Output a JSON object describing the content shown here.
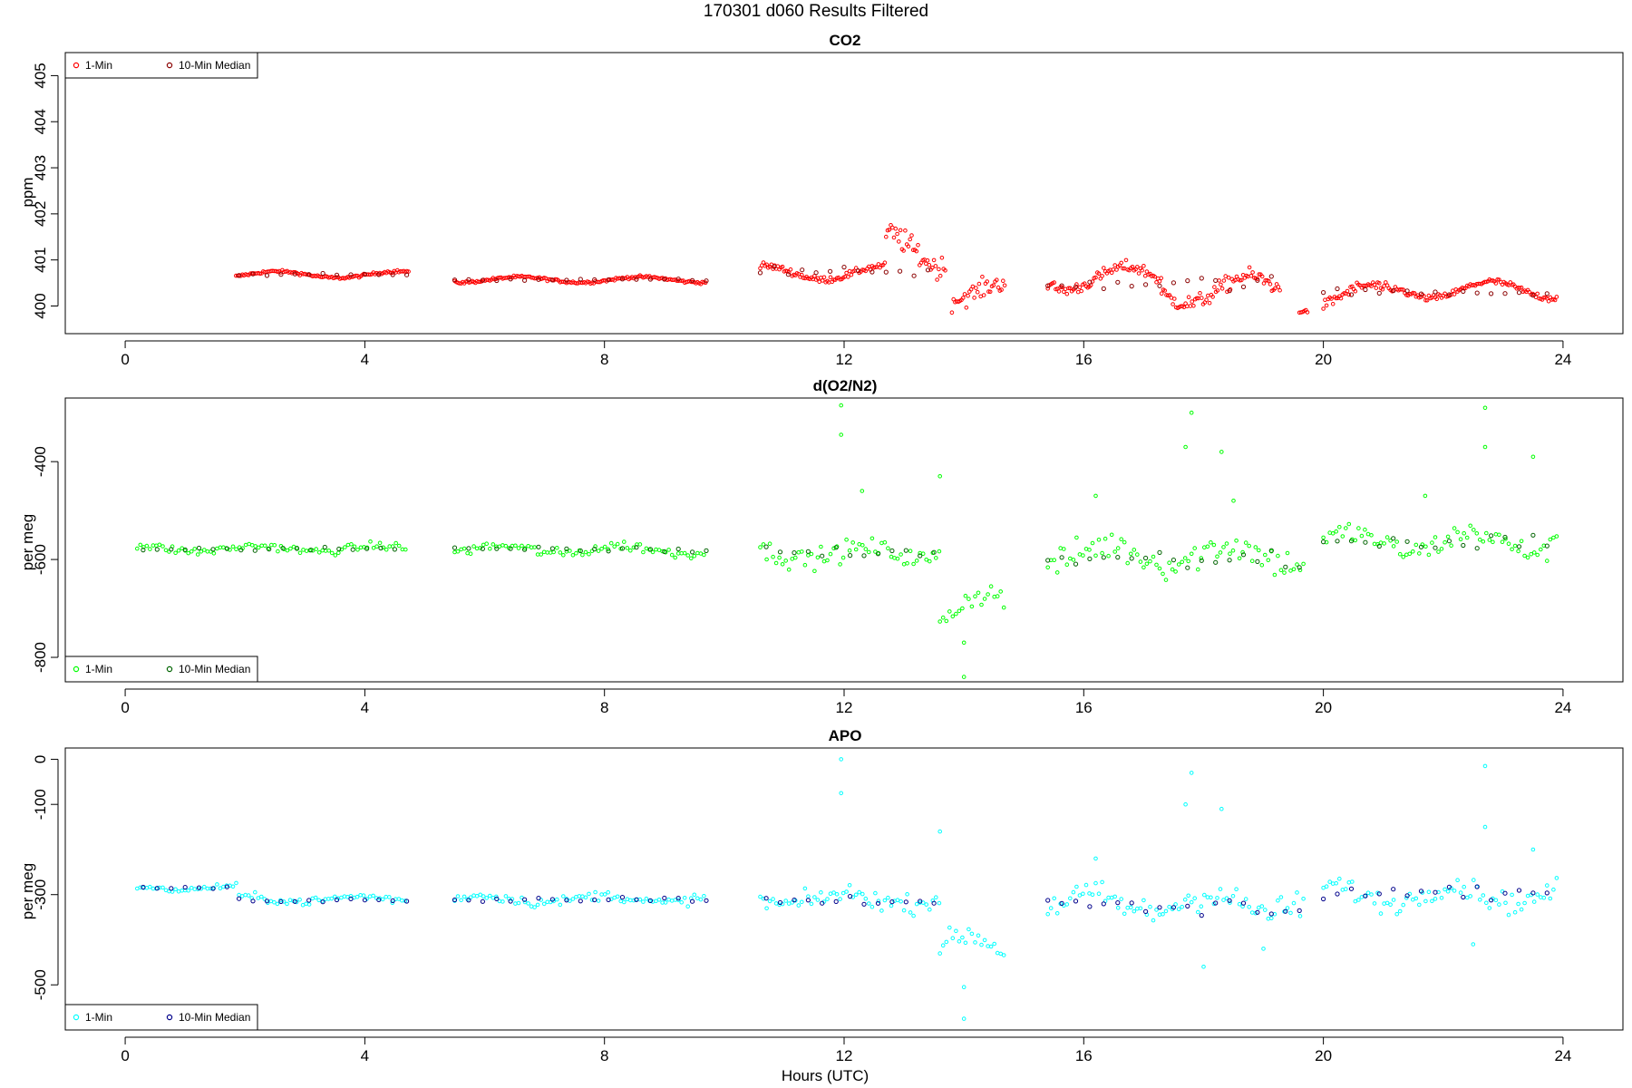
{
  "figure": {
    "main_title": "170301   d060   Results Filtered",
    "xlabel": "Hours (UTC)"
  },
  "chart_data": [
    {
      "type": "scatter",
      "title": "CO2",
      "ylabel": "ppm",
      "xlim": [
        -1.0,
        25.0
      ],
      "ylim": [
        399.4,
        405.5
      ],
      "xticks": [
        0,
        4,
        8,
        12,
        16,
        20,
        24
      ],
      "yticks": [
        400,
        401,
        402,
        403,
        404,
        405
      ],
      "legend_position": "top-left",
      "series": [
        {
          "name": "1-Min",
          "color": "#ff0000",
          "points": []
        },
        {
          "name": "10-Min Median",
          "color": "#8b0000",
          "points": []
        }
      ],
      "segments_1min": [
        {
          "x0": 1.85,
          "x1": 4.75,
          "base": 400.68,
          "noise": 0.05,
          "wave": 0.07
        },
        {
          "x0": 5.5,
          "x1": 9.7,
          "base": 400.57,
          "noise": 0.05,
          "wave": 0.06
        },
        {
          "x0": 10.6,
          "x1": 12.7,
          "base": 400.72,
          "noise": 0.12,
          "wave": 0.15
        },
        {
          "x0": 12.7,
          "x1": 13.7,
          "base": 401.2,
          "noise": 0.45,
          "wave": 0.4
        },
        {
          "x0": 13.8,
          "x1": 14.7,
          "base": 400.3,
          "noise": 0.35,
          "wave": 0.2
        },
        {
          "x0": 15.4,
          "x1": 17.3,
          "base": 400.6,
          "noise": 0.22,
          "wave": 0.25
        },
        {
          "x0": 17.3,
          "x1": 19.3,
          "base": 400.35,
          "noise": 0.3,
          "wave": 0.3
        },
        {
          "x0": 19.6,
          "x1": 19.75,
          "base": 399.9,
          "noise": 0.05,
          "wave": 0.02
        },
        {
          "x0": 20.0,
          "x1": 21.2,
          "base": 400.2,
          "noise": 0.2,
          "wave": 0.25
        },
        {
          "x0": 21.2,
          "x1": 23.9,
          "base": 400.35,
          "noise": 0.12,
          "wave": 0.18
        }
      ],
      "segments_median": [
        {
          "x0": 1.9,
          "x1": 4.7,
          "base": 400.68,
          "noise": 0.04
        },
        {
          "x0": 5.5,
          "x1": 9.7,
          "base": 400.57,
          "noise": 0.04
        },
        {
          "x0": 10.6,
          "x1": 13.5,
          "base": 400.75,
          "noise": 0.2
        },
        {
          "x0": 15.4,
          "x1": 19.3,
          "base": 400.5,
          "noise": 0.25
        },
        {
          "x0": 20.0,
          "x1": 23.9,
          "base": 400.3,
          "noise": 0.15
        }
      ]
    },
    {
      "type": "scatter",
      "title": "d(O2/N2)",
      "ylabel": "per meg",
      "xlim": [
        -1.0,
        25.0
      ],
      "ylim": [
        -850,
        -270
      ],
      "xticks": [
        0,
        4,
        8,
        12,
        16,
        20,
        24
      ],
      "yticks": [
        -800,
        -600,
        -400
      ],
      "legend_position": "bottom-left",
      "series": [
        {
          "name": "1-Min",
          "color": "#00ff00",
          "points": []
        },
        {
          "name": "10-Min Median",
          "color": "#006400",
          "points": []
        }
      ],
      "segments_1min": [
        {
          "x0": 0.2,
          "x1": 4.7,
          "base": -578,
          "noise": 14,
          "wave": 6
        },
        {
          "x0": 5.5,
          "x1": 9.7,
          "base": -580,
          "noise": 18,
          "wave": 8
        },
        {
          "x0": 10.6,
          "x1": 13.6,
          "base": -588,
          "noise": 35,
          "wave": 12
        },
        {
          "x0": 13.6,
          "x1": 14.7,
          "base": -700,
          "noise": 40,
          "wave": 30
        },
        {
          "x0": 15.4,
          "x1": 19.7,
          "base": -590,
          "noise": 55,
          "wave": 20
        },
        {
          "x0": 20.0,
          "x1": 23.9,
          "base": -565,
          "noise": 40,
          "wave": 20
        }
      ],
      "segments_median": [
        {
          "x0": 0.3,
          "x1": 4.7,
          "base": -578,
          "noise": 8
        },
        {
          "x0": 5.5,
          "x1": 9.7,
          "base": -580,
          "noise": 10
        },
        {
          "x0": 10.7,
          "x1": 13.6,
          "base": -585,
          "noise": 20
        },
        {
          "x0": 15.4,
          "x1": 19.7,
          "base": -600,
          "noise": 40
        },
        {
          "x0": 20.0,
          "x1": 23.9,
          "base": -565,
          "noise": 30
        }
      ],
      "outliers_1min": [
        [
          11.95,
          -285
        ],
        [
          11.95,
          -345
        ],
        [
          17.8,
          -300
        ],
        [
          22.7,
          -290
        ],
        [
          22.7,
          -370
        ],
        [
          17.7,
          -370
        ],
        [
          13.6,
          -430
        ],
        [
          14.0,
          -840
        ],
        [
          14.0,
          -770
        ],
        [
          18.3,
          -380
        ],
        [
          23.5,
          -390
        ],
        [
          12.3,
          -460
        ],
        [
          18.5,
          -480
        ],
        [
          21.7,
          -470
        ],
        [
          16.2,
          -470
        ]
      ]
    },
    {
      "type": "scatter",
      "title": "APO",
      "ylabel": "per meg",
      "xlim": [
        -1.0,
        25.0
      ],
      "ylim": [
        -600,
        25
      ],
      "xticks": [
        0,
        4,
        8,
        12,
        16,
        20,
        24
      ],
      "yticks": [
        -500,
        -300,
        -100,
        0
      ],
      "legend_position": "bottom-left",
      "series": [
        {
          "name": "1-Min",
          "color": "#00ffff",
          "points": []
        },
        {
          "name": "10-Min Median",
          "color": "#00008b",
          "points": []
        }
      ],
      "segments_1min": [
        {
          "x0": 0.2,
          "x1": 1.9,
          "base": -285,
          "noise": 10,
          "wave": 5
        },
        {
          "x0": 1.9,
          "x1": 4.7,
          "base": -310,
          "noise": 15,
          "wave": 6
        },
        {
          "x0": 5.5,
          "x1": 9.7,
          "base": -310,
          "noise": 18,
          "wave": 8
        },
        {
          "x0": 10.6,
          "x1": 13.6,
          "base": -310,
          "noise": 35,
          "wave": 12
        },
        {
          "x0": 13.6,
          "x1": 14.7,
          "base": -420,
          "noise": 40,
          "wave": 30
        },
        {
          "x0": 15.4,
          "x1": 19.7,
          "base": -320,
          "noise": 55,
          "wave": 20
        },
        {
          "x0": 20.0,
          "x1": 23.9,
          "base": -300,
          "noise": 40,
          "wave": 20
        }
      ],
      "segments_median": [
        {
          "x0": 0.3,
          "x1": 1.9,
          "base": -285,
          "noise": 5
        },
        {
          "x0": 1.9,
          "x1": 4.7,
          "base": -312,
          "noise": 8
        },
        {
          "x0": 5.5,
          "x1": 9.7,
          "base": -310,
          "noise": 10
        },
        {
          "x0": 10.7,
          "x1": 13.6,
          "base": -312,
          "noise": 20
        },
        {
          "x0": 15.4,
          "x1": 19.7,
          "base": -330,
          "noise": 40
        },
        {
          "x0": 20.0,
          "x1": 23.9,
          "base": -295,
          "noise": 30
        }
      ],
      "outliers_1min": [
        [
          11.95,
          0
        ],
        [
          11.95,
          -75
        ],
        [
          17.8,
          -30
        ],
        [
          22.7,
          -15
        ],
        [
          22.7,
          -150
        ],
        [
          17.7,
          -100
        ],
        [
          13.6,
          -160
        ],
        [
          14.0,
          -575
        ],
        [
          14.0,
          -505
        ],
        [
          18.3,
          -110
        ],
        [
          23.5,
          -200
        ],
        [
          16.2,
          -220
        ],
        [
          19.0,
          -420
        ],
        [
          18.0,
          -460
        ],
        [
          22.5,
          -410
        ]
      ]
    }
  ]
}
